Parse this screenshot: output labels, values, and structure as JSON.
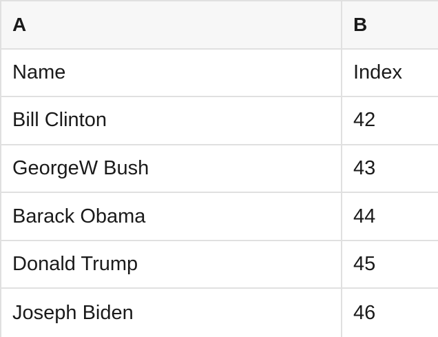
{
  "table": {
    "column_headers": [
      "A",
      "B"
    ],
    "rows": [
      {
        "a": "Name",
        "b": "Index"
      },
      {
        "a": "Bill Clinton",
        "b": "42"
      },
      {
        "a": "GeorgeW Bush",
        "b": "43"
      },
      {
        "a": "Barack Obama",
        "b": "44"
      },
      {
        "a": "Donald Trump",
        "b": "45"
      },
      {
        "a": "Joseph Biden",
        "b": "46"
      }
    ]
  },
  "colors": {
    "header_background": "#f7f7f7",
    "border": "#e0e0e0",
    "text": "#1a1a1a",
    "row_background": "#ffffff"
  }
}
